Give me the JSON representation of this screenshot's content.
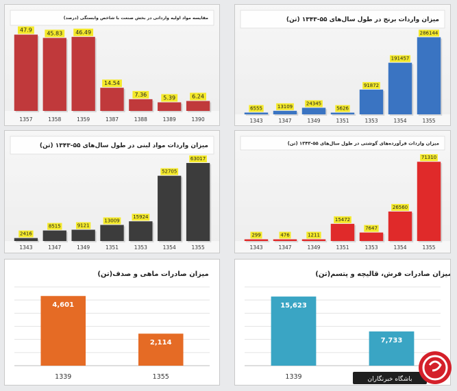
{
  "colors": {
    "red": "#c0393b",
    "blue": "#3a74c2",
    "dark": "#3c3c3c",
    "bright_red": "#e02a2a",
    "orange": "#e56b25",
    "teal": "#3aa5c4",
    "label_bg": "#f4e92a"
  },
  "chart_data": [
    {
      "type": "bar",
      "title": "مقایسه مواد اولیه وارداتی در بخش صنعت با شاخص وابستگی (درصد)",
      "categories": [
        "1357",
        "1358",
        "1359",
        "1387",
        "1388",
        "1389",
        "1390"
      ],
      "values": [
        47.9,
        45.83,
        46.49,
        14.54,
        7.36,
        5.39,
        6.24
      ],
      "data_labels": [
        "47.9",
        "45.83",
        "46.49",
        "14.54",
        "7.36",
        "5.39",
        "6.24"
      ],
      "ylim": [
        0,
        52
      ],
      "color": "#c0393b"
    },
    {
      "type": "bar",
      "title": "میزان واردات برنج در طول سال‌های ۵۵-۱۳۴۳ (تن)",
      "categories": [
        "1343",
        "1347",
        "1349",
        "1351",
        "1353",
        "1354",
        "1355"
      ],
      "values": [
        6555,
        13109,
        24345,
        5626,
        91872,
        191457,
        286144
      ],
      "data_labels": [
        "6555",
        "13109",
        "24345",
        "5626",
        "91872",
        "191457",
        "286144"
      ],
      "ylim": [
        0,
        310000
      ],
      "color": "#3a74c2"
    },
    {
      "type": "bar",
      "title": "میزان واردات مواد لبنی در طول سال‌های ۵۵-۱۳۴۳ (تن)",
      "categories": [
        "1343",
        "1347",
        "1349",
        "1351",
        "1353",
        "1354",
        "1355"
      ],
      "values": [
        2416,
        8515,
        9121,
        13009,
        15924,
        52705,
        63017
      ],
      "data_labels": [
        "2416",
        "8515",
        "9121",
        "13009",
        "15924",
        "52705",
        "63017"
      ],
      "ylim": [
        0,
        68000
      ],
      "color": "#3c3c3c"
    },
    {
      "type": "bar",
      "title": "میزان واردات فرآورده‌های گوشتی در طول سال‌های ۵۵-۱۳۴۳ (تن)",
      "categories": [
        "1343",
        "1347",
        "1349",
        "1351",
        "1353",
        "1354",
        "1355"
      ],
      "values": [
        299,
        476,
        1211,
        15472,
        7647,
        26560,
        71310
      ],
      "data_labels": [
        "299",
        "476",
        "1211",
        "15472",
        "7647",
        "26560",
        "71310"
      ],
      "ylim": [
        0,
        77000
      ],
      "color": "#e02a2a"
    },
    {
      "type": "bar",
      "title": "میزان صادرات ماهی و صدف(تن)",
      "categories": [
        "1339",
        "1355"
      ],
      "values": [
        4601,
        2114
      ],
      "data_labels": [
        "4,601",
        "2,114"
      ],
      "ylim": [
        0,
        5200
      ],
      "grid": true,
      "color": "#e56b25"
    },
    {
      "type": "bar",
      "title": "میزان صادرات فرش، قالیچه و پتسم(تن)",
      "categories": [
        "1339",
        "1355"
      ],
      "values": [
        15623,
        7733
      ],
      "data_labels": [
        "15,623",
        "7,733"
      ],
      "ylim": [
        0,
        17800
      ],
      "grid": true,
      "color": "#3aa5c4"
    }
  ],
  "watermark": {
    "text": "باشگاه خبرنگاران"
  }
}
